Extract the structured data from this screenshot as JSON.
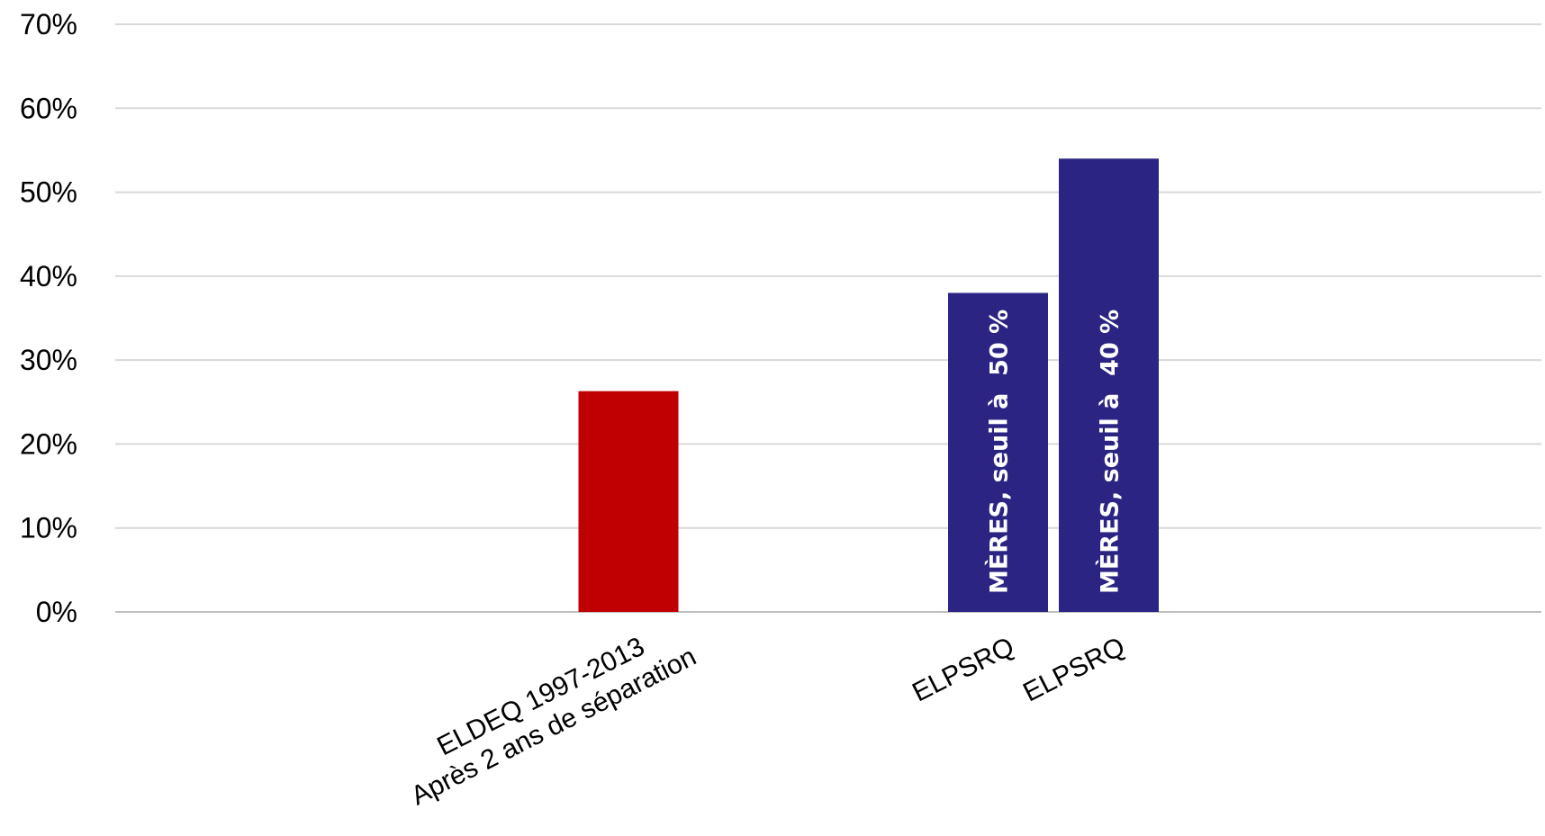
{
  "chart_data": {
    "type": "bar",
    "title": "",
    "xlabel": "",
    "ylabel": "",
    "ylim": [
      0,
      0.7
    ],
    "y_tick_labels": [
      "0%",
      "10%",
      "20%",
      "30%",
      "40%",
      "50%",
      "60%",
      "70%"
    ],
    "grid": true,
    "legend": "none",
    "bars": [
      {
        "category": "ELDEQ 1997-2013",
        "sublabel": "Après 2 ans de séparation",
        "value": 0.263,
        "color": "#c00000",
        "inner_label": ""
      },
      {
        "category": "ELPSRQ",
        "sublabel": "",
        "value": 0.38,
        "color": "#2b2483",
        "inner_label": "MÈRES, seuil à  50 %"
      },
      {
        "category": "ELPSRQ",
        "sublabel": "",
        "value": 0.54,
        "color": "#2b2483",
        "inner_label": "MÈRES, seuil à  40 %"
      }
    ]
  }
}
